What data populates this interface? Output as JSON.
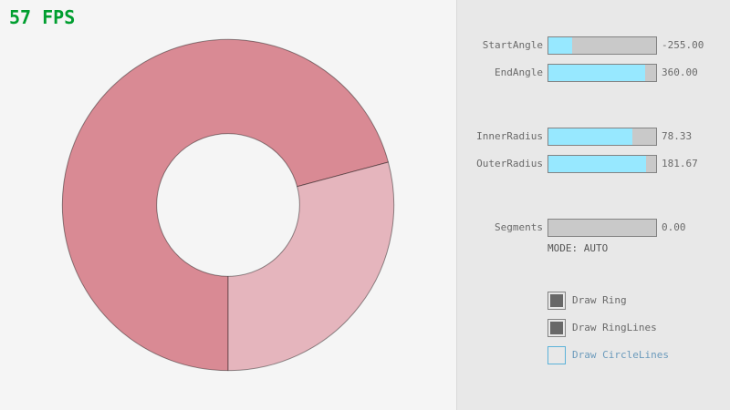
{
  "fps": {
    "label": "57 FPS",
    "color": "#009e2f"
  },
  "ring": {
    "description": "annular ring drawn from StartAngle to EndAngle; overlap region drawn twice appears darker",
    "single_pass_color": "#e5b5bd",
    "overlap_color": "#d98a94",
    "outline_color": "rgba(0,0,0,0.42)",
    "background_color": "#f5f5f5"
  },
  "panel": {
    "background_color": "#e8e8e8",
    "divider_color": "#dadada",
    "slider_fill_color": "#97e8ff",
    "slider_track_color": "#c9c9c9",
    "slider_border_color": "#838383"
  },
  "sliders": [
    {
      "label": "StartAngle",
      "value": "-255.00",
      "fill_pct": 21.67
    },
    {
      "label": "EndAngle",
      "value": "360.00",
      "fill_pct": 90.0
    },
    {
      "label": "InnerRadius",
      "value": "78.33",
      "fill_pct": 78.33
    },
    {
      "label": "OuterRadius",
      "value": "181.67",
      "fill_pct": 90.83
    },
    {
      "label": "Segments",
      "value": "0.00",
      "fill_pct": 0
    }
  ],
  "mode_text": "MODE: AUTO",
  "checkboxes": [
    {
      "label": "Draw Ring",
      "checked": true,
      "focused": false
    },
    {
      "label": "Draw RingLines",
      "checked": true,
      "focused": false
    },
    {
      "label": "Draw CircleLines",
      "checked": false,
      "focused": true
    }
  ]
}
